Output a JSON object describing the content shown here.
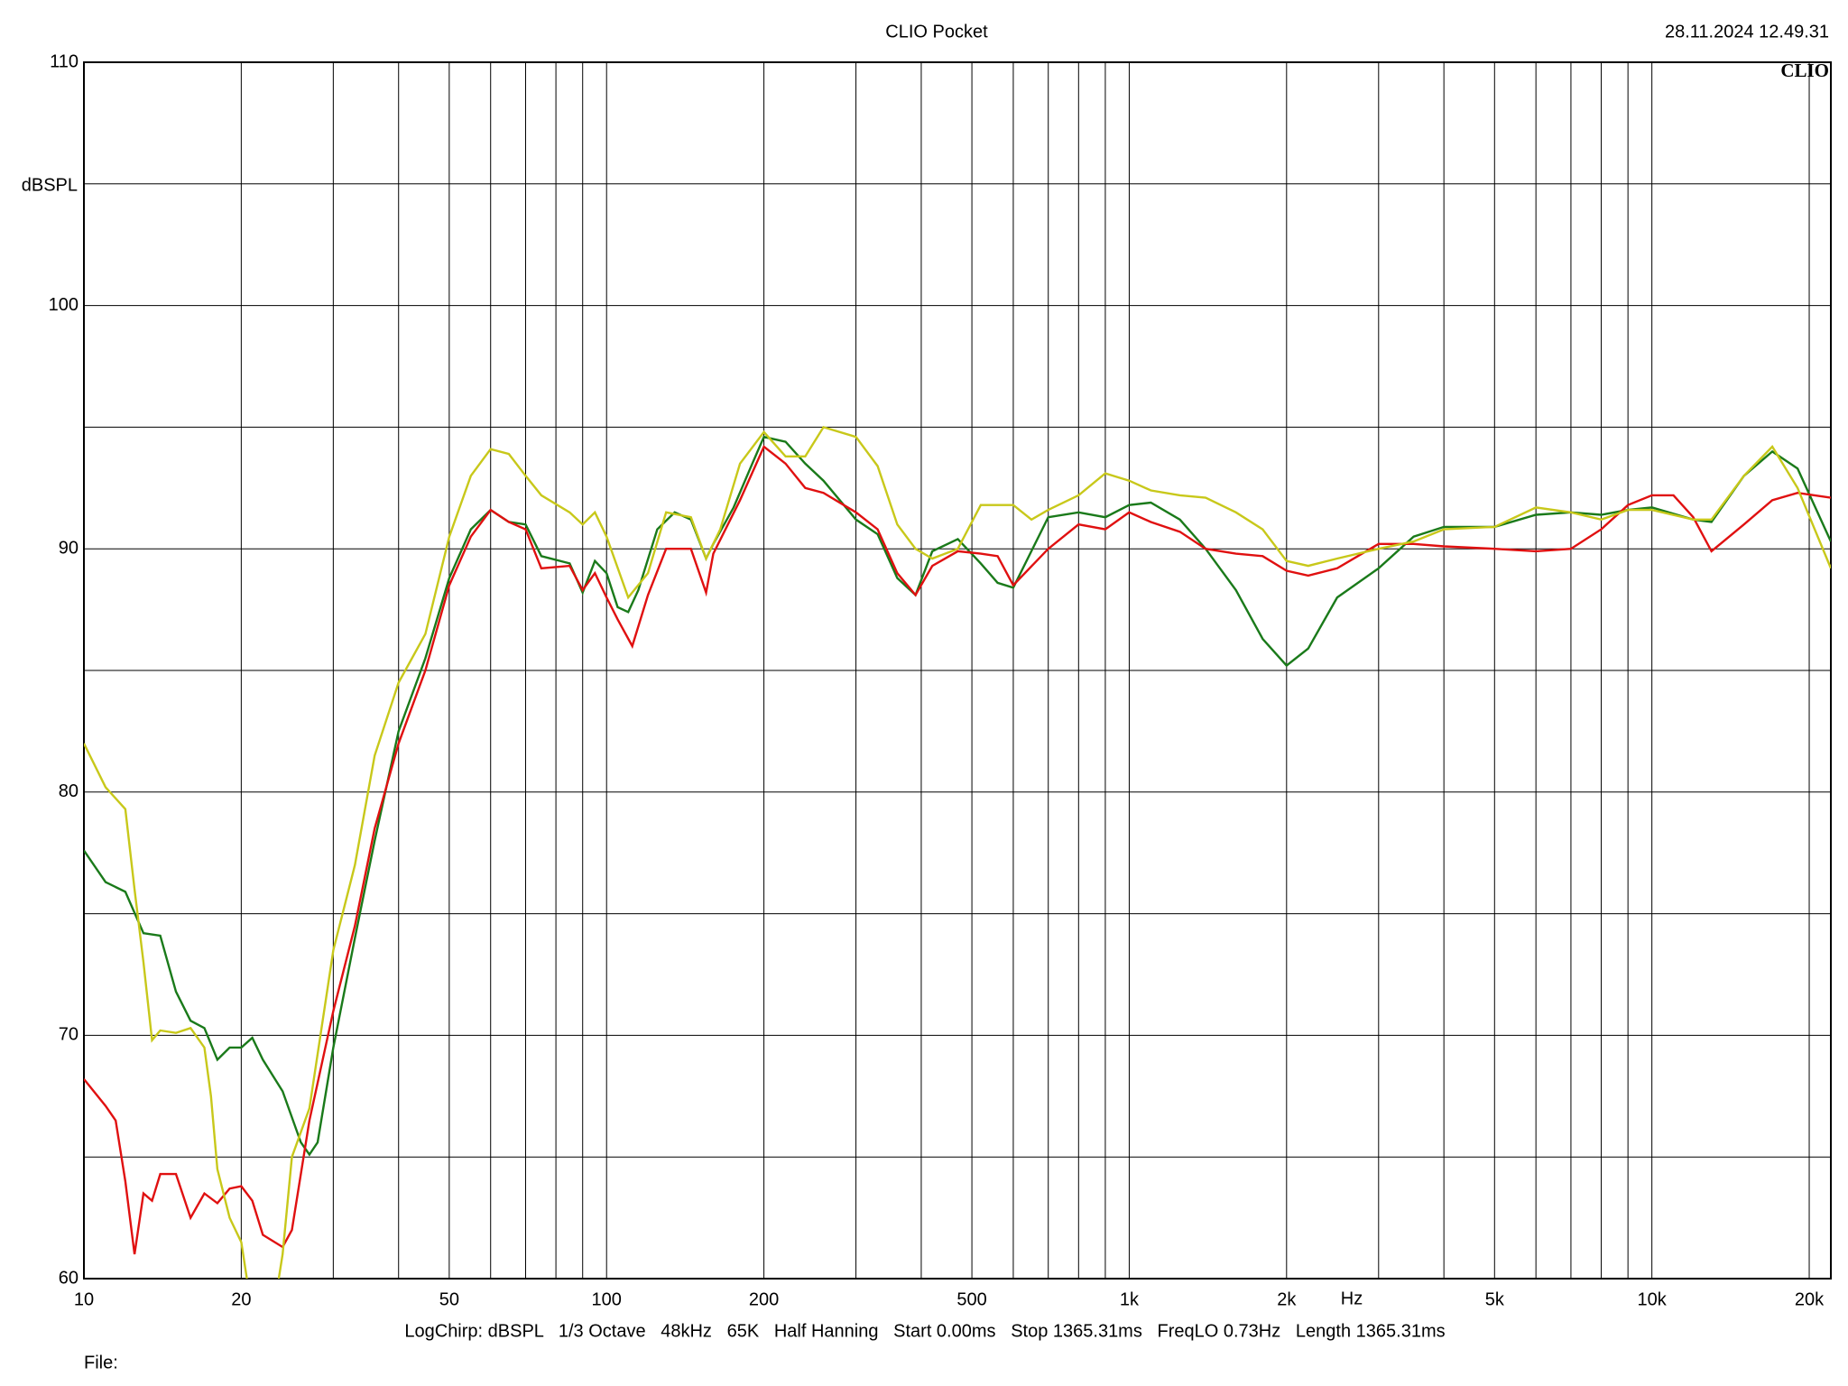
{
  "chart_data": {
    "type": "line",
    "title": "CLIO Pocket",
    "timestamp": "28.11.2024 12.49.31",
    "logo": "CLIO",
    "y_label": "dBSPL",
    "x_label": "Hz",
    "footer": "LogChirp: dBSPL   1/3 Octave   48kHz   65K   Half Hanning   Start 0.00ms   Stop 1365.31ms   FreqLO 0.73Hz   Length 1365.31ms",
    "file_label": "File:",
    "xscale": "log",
    "grid": true,
    "xlim": [
      10,
      22000
    ],
    "ylim": [
      60,
      110
    ],
    "xticks": [
      10,
      20,
      50,
      100,
      200,
      500,
      {
        "value": 1000,
        "label": "1k"
      },
      {
        "value": 2000,
        "label": "2k"
      },
      {
        "value": 5000,
        "label": "5k"
      },
      {
        "value": 10000,
        "label": "10k"
      },
      {
        "value": 20000,
        "label": "20k"
      }
    ],
    "xminor": [
      30,
      40,
      60,
      70,
      80,
      90,
      300,
      400,
      600,
      700,
      800,
      900,
      3000,
      4000,
      6000,
      7000,
      8000,
      9000
    ],
    "yticks": [
      60,
      70,
      80,
      90,
      100,
      110
    ],
    "yminor": [
      65,
      75,
      85,
      95,
      105
    ],
    "series": [
      {
        "color": "#1a7a1a",
        "x": [
          10,
          11,
          12,
          13,
          14,
          15,
          16,
          17,
          18,
          19,
          20,
          21,
          22,
          24,
          26,
          27,
          28,
          30,
          33,
          36,
          40,
          45,
          50,
          55,
          60,
          65,
          70,
          75,
          85,
          90,
          95,
          100,
          105,
          110,
          115,
          125,
          135,
          145,
          155,
          160,
          175,
          190,
          200,
          220,
          240,
          260,
          300,
          330,
          360,
          390,
          420,
          470,
          520,
          560,
          600,
          700,
          800,
          900,
          1000,
          1100,
          1250,
          1400,
          1600,
          1800,
          2000,
          2200,
          2500,
          3000,
          3500,
          4000,
          5000,
          6000,
          7000,
          8000,
          9000,
          10000,
          12000,
          13000,
          15000,
          17000,
          19000,
          22000
        ],
        "values": [
          77.6,
          76.3,
          75.9,
          74.2,
          74.1,
          71.8,
          70.6,
          70.3,
          69.0,
          69.5,
          69.5,
          69.9,
          69.0,
          67.7,
          65.6,
          65.1,
          65.6,
          69.5,
          74,
          78,
          82.5,
          85.5,
          88.8,
          90.8,
          91.6,
          91.1,
          91.0,
          89.7,
          89.4,
          88.2,
          89.5,
          89.0,
          87.6,
          87.4,
          88.3,
          90.8,
          91.5,
          91.2,
          89.6,
          90.2,
          91.7,
          93.5,
          94.6,
          94.4,
          93.5,
          92.8,
          91.2,
          90.6,
          88.8,
          88.1,
          89.9,
          90.4,
          89.4,
          88.6,
          88.4,
          91.3,
          91.5,
          91.3,
          91.8,
          91.9,
          91.2,
          90.0,
          88.3,
          86.3,
          85.2,
          85.9,
          88,
          89.2,
          90.5,
          90.9,
          90.9,
          91.4,
          91.5,
          91.4,
          91.6,
          91.7,
          91.2,
          91.1,
          93.0,
          94.0,
          93.3,
          90.3
        ]
      },
      {
        "color": "#e01010",
        "x": [
          10,
          11,
          11.5,
          12,
          12.5,
          13,
          13.5,
          14,
          15,
          16,
          17,
          18,
          19,
          20,
          21,
          22,
          24,
          25,
          27,
          30,
          33,
          36,
          40,
          45,
          50,
          55,
          60,
          65,
          70,
          75,
          85,
          90,
          95,
          100,
          105,
          112,
          120,
          130,
          145,
          155,
          160,
          180,
          200,
          220,
          240,
          260,
          300,
          330,
          360,
          390,
          420,
          470,
          520,
          560,
          600,
          700,
          800,
          900,
          1000,
          1100,
          1250,
          1400,
          1600,
          1800,
          2000,
          2200,
          2500,
          3000,
          3500,
          4000,
          5000,
          6000,
          7000,
          8000,
          9000,
          10000,
          11000,
          12000,
          13000,
          15000,
          17000,
          19000,
          22000
        ],
        "values": [
          68.2,
          67.1,
          66.5,
          64.0,
          61,
          63.5,
          63.2,
          64.3,
          64.3,
          62.5,
          63.5,
          63.1,
          63.7,
          63.8,
          63.2,
          61.8,
          61.3,
          62,
          66.5,
          71,
          74.5,
          78.5,
          82.0,
          85.0,
          88.5,
          90.5,
          91.6,
          91.1,
          90.8,
          89.2,
          89.3,
          88.3,
          89.0,
          88.0,
          87.1,
          86.0,
          88.1,
          90.0,
          90.0,
          88.2,
          89.8,
          92.0,
          94.2,
          93.5,
          92.5,
          92.3,
          91.5,
          90.8,
          89.0,
          88.1,
          89.3,
          89.9,
          89.8,
          89.7,
          88.5,
          90.0,
          91.0,
          90.8,
          91.5,
          91.1,
          90.7,
          90.0,
          89.8,
          89.7,
          89.1,
          88.9,
          89.2,
          90.2,
          90.2,
          90.1,
          90.0,
          89.9,
          90.0,
          90.8,
          91.8,
          92.2,
          92.2,
          91.3,
          89.9,
          91.0,
          92.0,
          92.3,
          92.1
        ]
      },
      {
        "color": "#c8c81a",
        "x": [
          10,
          11,
          12,
          12.5,
          13,
          13.5,
          14,
          15,
          16,
          17,
          17.5,
          18,
          19,
          20,
          20.5,
          21,
          23,
          24,
          25,
          27,
          30,
          33,
          36,
          40,
          45,
          50,
          55,
          60,
          65,
          70,
          75,
          85,
          90,
          95,
          100,
          110,
          120,
          130,
          145,
          155,
          165,
          180,
          200,
          220,
          240,
          260,
          300,
          330,
          360,
          390,
          420,
          470,
          520,
          600,
          650,
          700,
          800,
          900,
          1000,
          1100,
          1250,
          1400,
          1600,
          1800,
          2000,
          2200,
          2500,
          3000,
          3500,
          4000,
          5000,
          6000,
          7000,
          8000,
          9000,
          10000,
          12000,
          13000,
          15000,
          17000,
          19000,
          22000
        ],
        "values": [
          82.0,
          80.2,
          79.3,
          76,
          73,
          69.8,
          70.2,
          70.1,
          70.3,
          69.5,
          67.5,
          64.5,
          62.5,
          61.5,
          60.0,
          58.5,
          58.5,
          61,
          65,
          67,
          73.5,
          77,
          81.5,
          84.5,
          86.5,
          90.5,
          93.0,
          94.1,
          93.9,
          93.0,
          92.2,
          91.5,
          91.0,
          91.5,
          90.5,
          88.0,
          89.0,
          91.5,
          91.3,
          89.6,
          90.8,
          93.5,
          94.8,
          93.8,
          93.8,
          95.0,
          94.6,
          93.4,
          91.0,
          90.0,
          89.6,
          90.0,
          91.8,
          91.8,
          91.2,
          91.6,
          92.2,
          93.1,
          92.8,
          92.4,
          92.2,
          92.1,
          91.5,
          90.8,
          89.5,
          89.3,
          89.6,
          90.0,
          90.3,
          90.8,
          90.9,
          91.7,
          91.5,
          91.2,
          91.6,
          91.6,
          91.2,
          91.2,
          93.0,
          94.2,
          92.5,
          89.2
        ]
      }
    ]
  }
}
